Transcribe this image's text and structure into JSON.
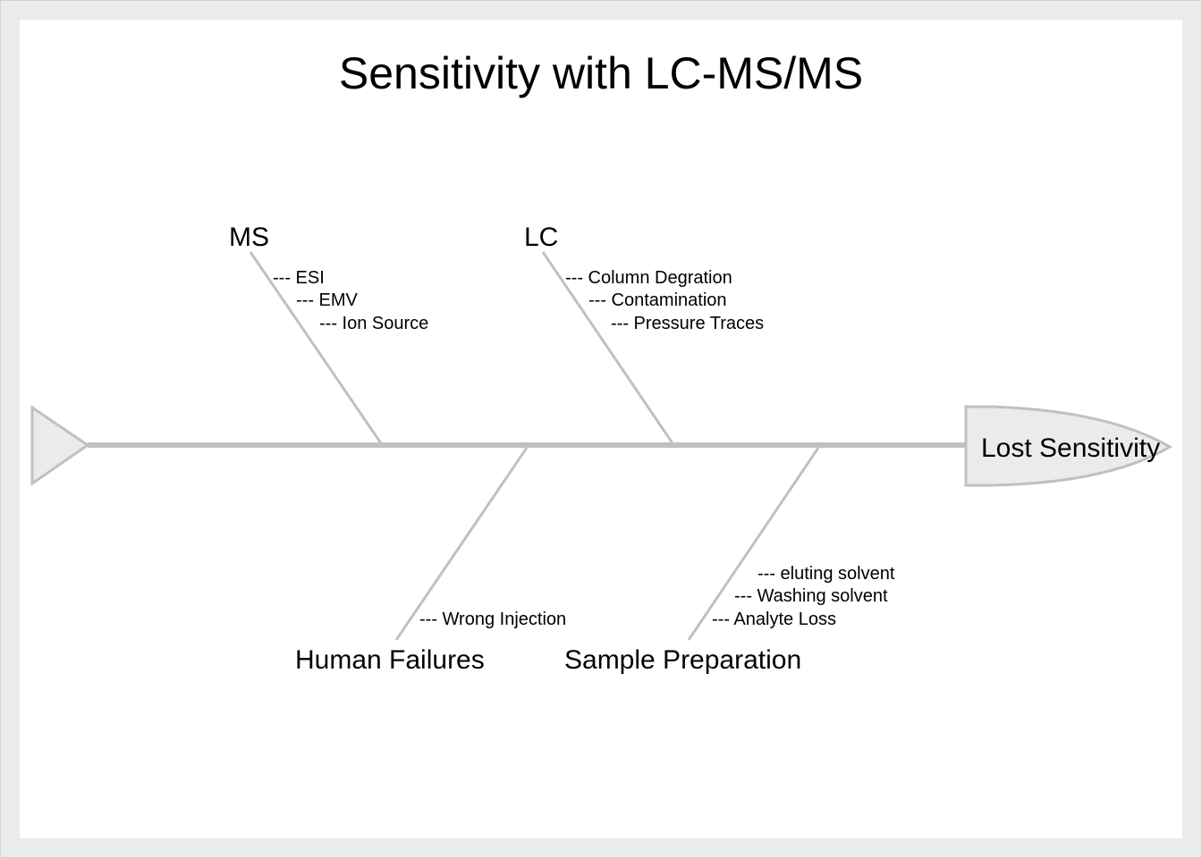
{
  "diagram": {
    "title": "Sensitivity with LC-MS/MS",
    "effect": "Lost Sensitivity",
    "colors": {
      "line": "#c0c0c0",
      "head_fill": "#ebebeb",
      "head_stroke": "#c0c0c0",
      "text": "#000000",
      "background": "#ffffff"
    },
    "categories": [
      {
        "name": "MS",
        "causes": [
          "--- ESI",
          "--- EMV",
          "--- Ion Source"
        ]
      },
      {
        "name": "LC",
        "causes": [
          "--- Column Degration",
          "--- Contamination",
          "--- Pressure Traces"
        ]
      },
      {
        "name": "Human Failures",
        "causes": [
          "--- Wrong Injection"
        ]
      },
      {
        "name": "Sample Preparation",
        "causes": [
          "--- eluting solvent",
          "--- Washing solvent",
          "--- Analyte Loss"
        ]
      }
    ]
  }
}
